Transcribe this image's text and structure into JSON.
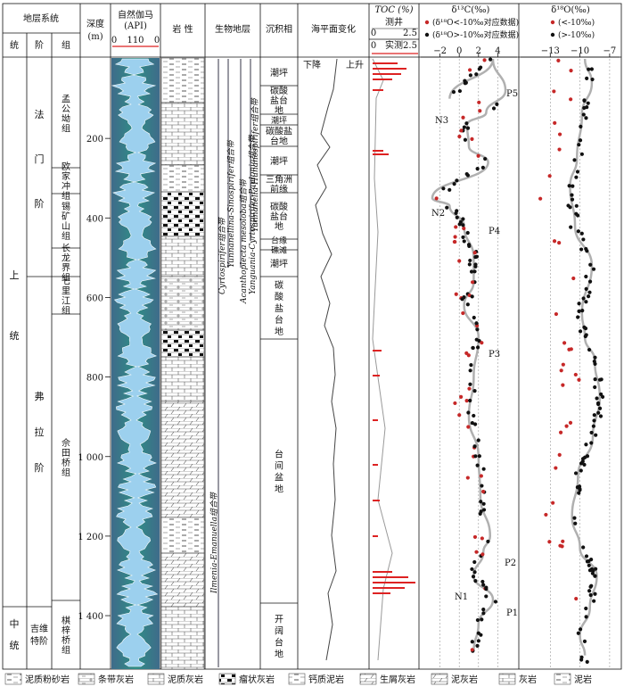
{
  "header": {
    "strat_system": "地层系统",
    "series": "统",
    "stage": "阶",
    "group": "组",
    "depth_label": "深度",
    "depth_unit": "(m)",
    "gamma_label": "自然伽马",
    "gamma_unit": "(API)",
    "gamma_ticks": [
      "0",
      "110",
      "0"
    ],
    "lithology": "岩 性",
    "bio": "生物地层",
    "facies": "沉积相",
    "sealevel": "海平面变化",
    "toc_label": "TOC (%)",
    "toc_log_label": "测井",
    "toc_meas_label": "实测",
    "toc_ticks": [
      "0",
      "2.5"
    ],
    "d13c_label": "δ¹³C(‰)",
    "d13c_legend_red": "(δ¹⁸O<-10‰对应数据)",
    "d13c_legend_black": "(δ¹⁸O>-10‰对应数据)",
    "d13c_ticks": [
      "−2",
      "0",
      "2",
      "4"
    ],
    "d18o_label": "δ¹⁸O(‰)",
    "d18o_legend_red": "(<-10‰)",
    "d18o_legend_black": "(>-10‰)",
    "d18o_ticks": [
      "−13",
      "−10",
      "−7"
    ]
  },
  "columns": {
    "series": [
      "上",
      "统",
      "中",
      "统"
    ],
    "stages": [
      {
        "name": "法",
        "name2": "门",
        "name3": "阶"
      },
      {
        "name": "弗",
        "name2": "拉",
        "name3": "阶"
      },
      {
        "name": "吉维",
        "name2": "特阶"
      }
    ],
    "groups": [
      "孟公坳组",
      "欧家冲组",
      "锡矿山组",
      "长龙界组",
      "七里江组",
      "佘田桥组",
      "棋梓桥组"
    ],
    "depth_ticks": [
      "200",
      "400",
      "600",
      "800",
      "1 000",
      "1 200",
      "1 400"
    ],
    "biozones": [
      "Ilmenia-Emanuella组合带",
      "Cyrtospirifer组合带",
      "Yunnanellina-Sinospirifer组合带",
      "Yunnanella-Hunanospirifer组合带",
      "Acanthoplecta mesoloba组合带",
      "Yanguania-Cyrtospirifer-Paulonia组合带"
    ],
    "facies": [
      "潮坪",
      "碳酸盐台地",
      "潮坪",
      "碳酸盐台地",
      "潮坪",
      "三角洲前缘",
      "碳酸盐台地",
      "台缘礁滩",
      "潮坪",
      "碳酸盐台地",
      "台间盆地",
      "开阔台地"
    ],
    "sealevel_fall": "下降",
    "sealevel_rise": "上升",
    "c_labels": [
      "P5",
      "N3",
      "N2",
      "P4",
      "P3",
      "P2",
      "N1",
      "P1"
    ]
  },
  "legend": [
    "泥质粉砂岩",
    "条带灰岩",
    "泥质灰岩",
    "瘤状灰岩",
    "钙质泥岩",
    "生屑灰岩",
    "泥灰岩",
    "灰岩",
    "泥岩"
  ],
  "chart_data": {
    "type": "scatter",
    "y_axis": "深度 (m)",
    "ylim": [
      0,
      1530
    ],
    "d13c_xlim": [
      -4,
      6
    ],
    "d18o_xlim": [
      -16,
      -6
    ],
    "d13c_curve": [
      [
        -1.0,
        100
      ],
      [
        3.5,
        0
      ],
      [
        4.8,
        80
      ],
      [
        2.8,
        135
      ],
      [
        0.8,
        165
      ],
      [
        1.0,
        220
      ],
      [
        3.0,
        260
      ],
      [
        -2.8,
        350
      ],
      [
        -1.0,
        370
      ],
      [
        0.5,
        420
      ],
      [
        1.5,
        500
      ],
      [
        1.5,
        560
      ],
      [
        0.5,
        620
      ],
      [
        2.0,
        700
      ],
      [
        1.5,
        800
      ],
      [
        1.0,
        900
      ],
      [
        2.0,
        1000
      ],
      [
        2.2,
        1100
      ],
      [
        3.2,
        1200
      ],
      [
        2.5,
        1240
      ],
      [
        1.5,
        1300
      ],
      [
        3.5,
        1360
      ],
      [
        2.0,
        1420
      ],
      [
        1.5,
        1490
      ]
    ],
    "d18o_curve": [
      [
        -9.5,
        0
      ],
      [
        -8.8,
        60
      ],
      [
        -9.8,
        140
      ],
      [
        -10.3,
        250
      ],
      [
        -11.0,
        320
      ],
      [
        -10.5,
        420
      ],
      [
        -8.8,
        520
      ],
      [
        -9.8,
        640
      ],
      [
        -9.5,
        700
      ],
      [
        -8.5,
        760
      ],
      [
        -8.0,
        850
      ],
      [
        -8.7,
        950
      ],
      [
        -10.2,
        1050
      ],
      [
        -10.8,
        1150
      ],
      [
        -10.0,
        1230
      ],
      [
        -8.3,
        1300
      ],
      [
        -9.0,
        1380
      ],
      [
        -10.0,
        1450
      ],
      [
        -9.5,
        1500
      ]
    ]
  }
}
